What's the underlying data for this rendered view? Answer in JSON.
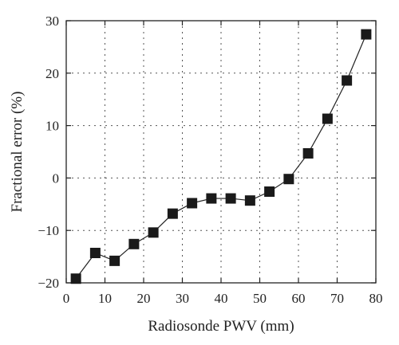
{
  "chart_data": {
    "type": "line",
    "title": "",
    "xlabel": "Radiosonde PWV (mm)",
    "ylabel": "Fractional error (%)",
    "xlim": [
      0,
      80
    ],
    "ylim": [
      -20,
      30
    ],
    "xticks": [
      0,
      10,
      20,
      30,
      40,
      50,
      60,
      70,
      80
    ],
    "yticks": [
      -20,
      -10,
      0,
      10,
      20,
      30
    ],
    "xtick_labels": [
      "0",
      "10",
      "20",
      "30",
      "40",
      "50",
      "60",
      "70",
      "80"
    ],
    "ytick_labels": [
      "−20",
      "−10",
      "0",
      "10",
      "20",
      "30"
    ],
    "grid": true,
    "marker": "square",
    "series": [
      {
        "x": [
          2.5,
          7.5,
          12.5,
          17.5,
          22.5,
          27.5,
          32.5,
          37.5,
          42.5,
          47.5,
          52.5,
          57.5,
          62.5,
          67.5,
          72.5,
          77.5
        ],
        "y": [
          -19.2,
          -14.3,
          -15.8,
          -12.6,
          -10.4,
          -6.8,
          -4.8,
          -3.9,
          -3.9,
          -4.3,
          -2.6,
          -0.2,
          4.7,
          11.3,
          18.6,
          27.4
        ]
      }
    ]
  }
}
